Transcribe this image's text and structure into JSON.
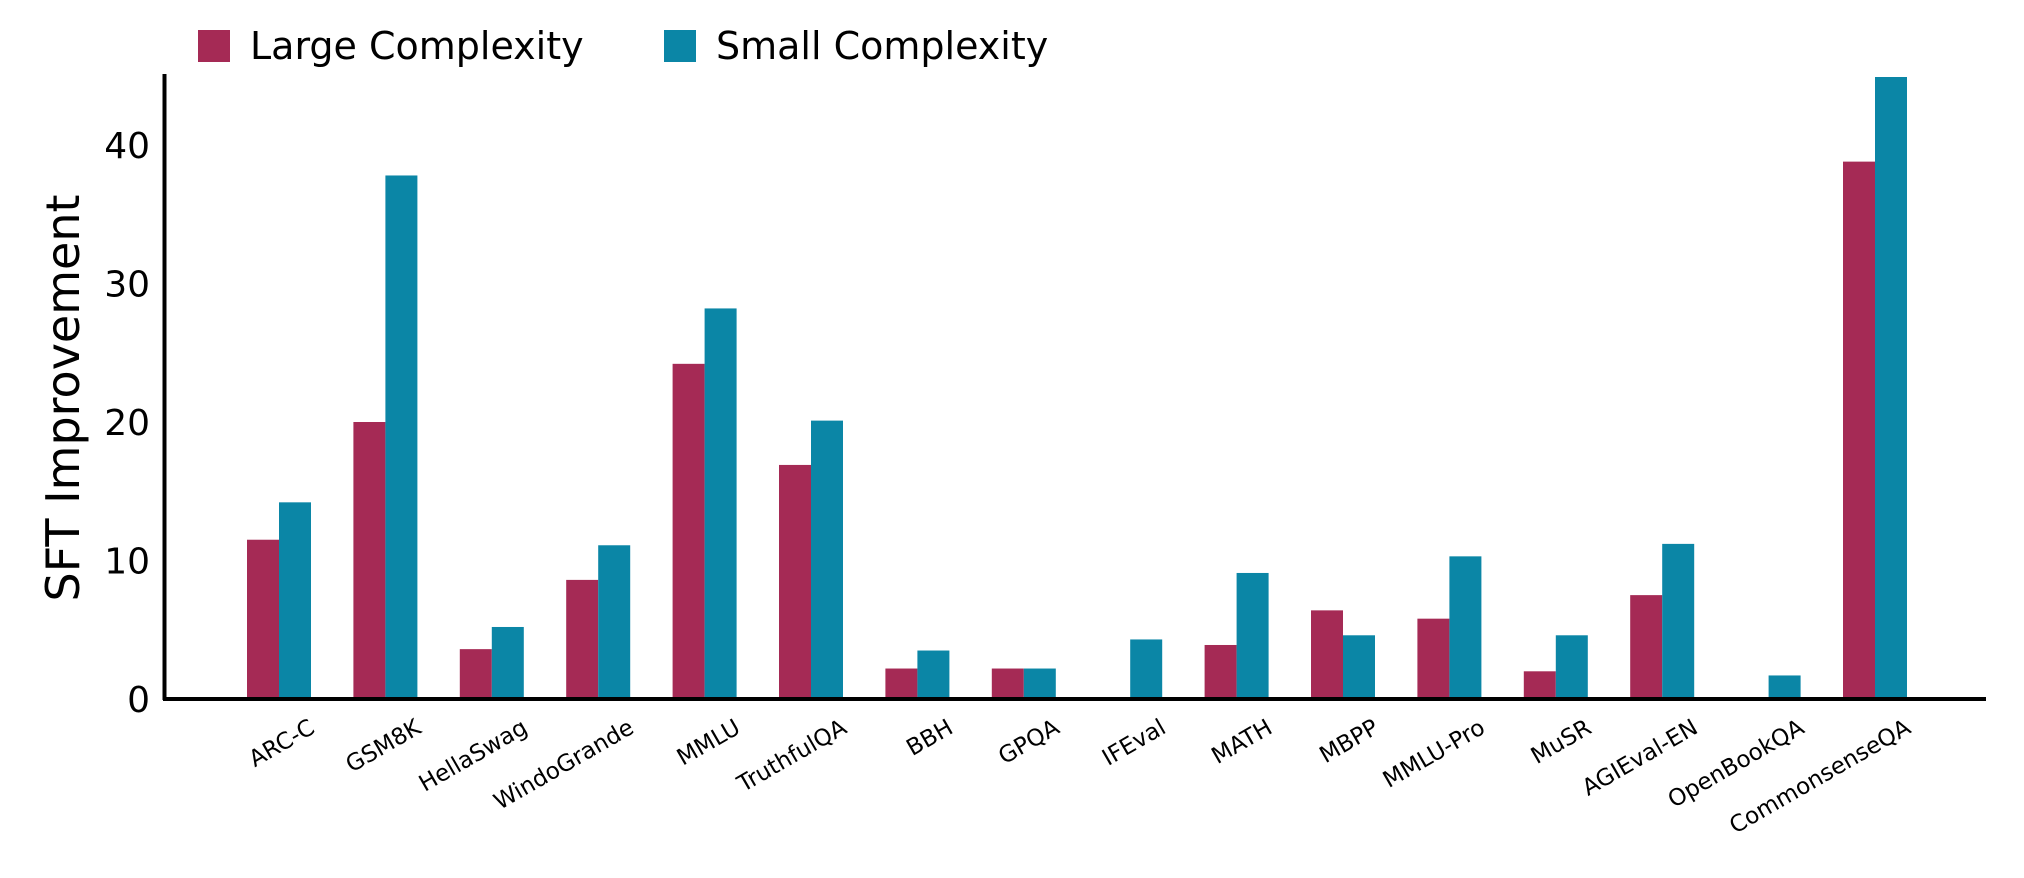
{
  "chart_data": {
    "type": "bar",
    "title": "",
    "xlabel": "",
    "ylabel": "SFT Improvement",
    "ylim": [
      0,
      45
    ],
    "yticks": [
      0,
      10,
      20,
      30,
      40
    ],
    "grid": false,
    "legend_position": "top-left",
    "categories": [
      "ARC-C",
      "GSM8K",
      "HellaSwag",
      "WindoGrande",
      "MMLU",
      "TruthfulQA",
      "BBH",
      "GPQA",
      "IFEval",
      "MATH",
      "MBPP",
      "MMLU-Pro",
      "MuSR",
      "AGIEval-EN",
      "OpenBookQA",
      "CommonsenseQA"
    ],
    "series": [
      {
        "name": "Large Complexity",
        "color": "#a52a55",
        "values": [
          11.5,
          20,
          3.6,
          8.6,
          24.2,
          16.9,
          2.2,
          2.2,
          0,
          3.9,
          6.4,
          5.8,
          2.0,
          7.5,
          0,
          38.8
        ]
      },
      {
        "name": "Small Complexity",
        "color": "#0b86a6",
        "values": [
          14.2,
          37.8,
          5.2,
          11.1,
          28.2,
          20.1,
          3.5,
          2.2,
          4.3,
          9.1,
          4.6,
          10.3,
          4.6,
          11.2,
          1.7,
          45.2
        ]
      }
    ]
  }
}
